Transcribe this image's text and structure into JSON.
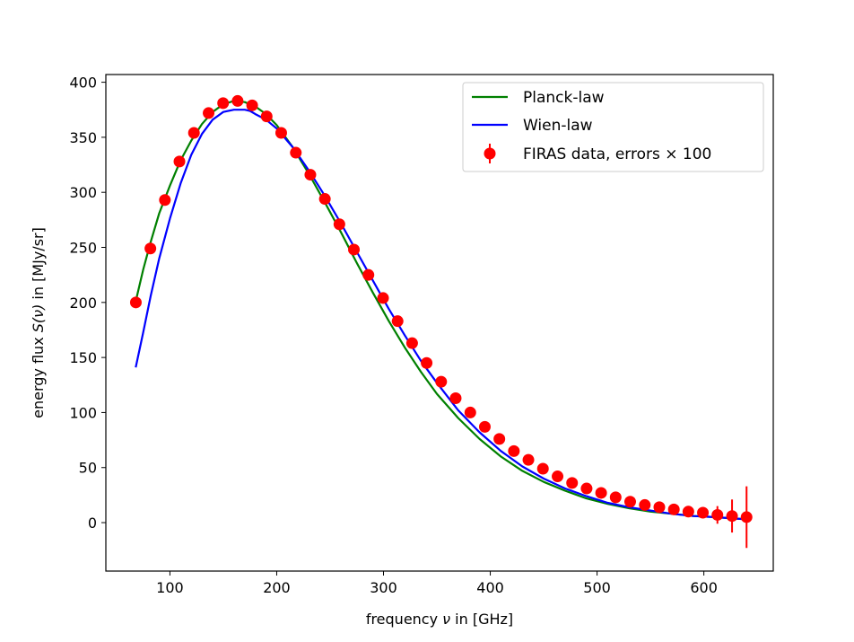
{
  "chart_data": {
    "type": "scatter",
    "xlabel_prefix": "frequency ",
    "xlabel_symbol": "ν",
    "xlabel_suffix": " in [GHz]",
    "ylabel_prefix": "energy flux ",
    "ylabel_symbol": "S(ν)",
    "ylabel_suffix": " in [MJy/sr]",
    "xlim": [
      40,
      665
    ],
    "ylim": [
      -44,
      407
    ],
    "xticks": [
      100,
      200,
      300,
      400,
      500,
      600
    ],
    "yticks": [
      0,
      50,
      100,
      150,
      200,
      250,
      300,
      350,
      400
    ],
    "grid": false,
    "legend_position": "top-right",
    "series": [
      {
        "name": "Planck-law",
        "kind": "line",
        "color": "#008000",
        "x": [
          68,
          75,
          82,
          90,
          100,
          110,
          120,
          130,
          140,
          150,
          160,
          170,
          180,
          190,
          200,
          215,
          230,
          245,
          260,
          275,
          290,
          305,
          320,
          335,
          350,
          370,
          390,
          410,
          430,
          450,
          470,
          490,
          510,
          530,
          550,
          570,
          590,
          610,
          625,
          640
        ],
        "y": [
          201,
          230,
          255,
          281,
          306,
          329,
          347,
          362,
          373,
          380,
          383,
          382,
          378,
          371,
          361,
          341,
          317,
          291,
          264,
          236,
          209,
          183,
          159,
          137,
          117,
          95,
          76,
          60,
          47,
          37,
          29,
          22,
          17,
          13,
          10,
          8,
          6,
          5,
          4,
          3
        ]
      },
      {
        "name": "Wien-law",
        "kind": "line",
        "color": "#0000ff",
        "x": [
          68,
          75,
          82,
          90,
          100,
          110,
          120,
          130,
          140,
          150,
          160,
          170,
          175,
          180,
          190,
          200,
          215,
          230,
          245,
          260,
          275,
          290,
          305,
          320,
          335,
          350,
          370,
          390,
          410,
          430,
          450,
          470,
          490,
          510,
          530,
          550,
          570,
          590,
          610,
          625,
          640
        ],
        "y": [
          141,
          173,
          206,
          240,
          276,
          308,
          334,
          353,
          366,
          373,
          375,
          375,
          374,
          371,
          366,
          358,
          341,
          320,
          297,
          272,
          246,
          220,
          194,
          170,
          147,
          127,
          102,
          82,
          65,
          51,
          40,
          31,
          24,
          18,
          14,
          11,
          8,
          6,
          5,
          4,
          3
        ]
      },
      {
        "name": "FIRAS data, errors × 100",
        "kind": "errorbar",
        "color": "#ff0000",
        "x": [
          68.1,
          81.7,
          95.3,
          108.9,
          122.5,
          136.2,
          149.8,
          163.4,
          177.0,
          190.6,
          204.2,
          217.9,
          231.5,
          245.1,
          258.7,
          272.3,
          285.9,
          299.6,
          313.2,
          326.8,
          340.4,
          354.0,
          367.6,
          381.3,
          394.9,
          408.5,
          422.1,
          435.7,
          449.3,
          463.0,
          476.6,
          490.2,
          503.8,
          517.4,
          531.0,
          544.7,
          558.3,
          571.9,
          585.5,
          599.1,
          612.7,
          626.4,
          640.0
        ],
        "y": [
          200,
          249,
          293,
          328,
          354,
          372,
          381,
          383,
          379,
          369,
          354,
          336,
          316,
          294,
          271,
          248,
          225,
          204,
          183,
          163,
          145,
          128,
          113,
          100,
          87,
          76,
          65,
          57,
          49,
          42,
          36,
          31,
          27,
          23,
          19,
          16,
          14,
          12,
          10,
          9,
          7,
          6,
          5
        ],
        "yerr": [
          0.5,
          0.5,
          0.5,
          0.5,
          0.5,
          0.5,
          0.5,
          0.5,
          0.5,
          0.5,
          0.5,
          0.5,
          0.5,
          0.5,
          0.5,
          0.5,
          0.5,
          0.5,
          0.5,
          0.5,
          0.5,
          0.5,
          0.5,
          0.5,
          0.5,
          0.5,
          0.5,
          0.5,
          0.5,
          0.5,
          0.5,
          0.5,
          0.5,
          0.5,
          0.6,
          0.7,
          0.8,
          1,
          1.5,
          3,
          8,
          15,
          28
        ]
      }
    ]
  }
}
